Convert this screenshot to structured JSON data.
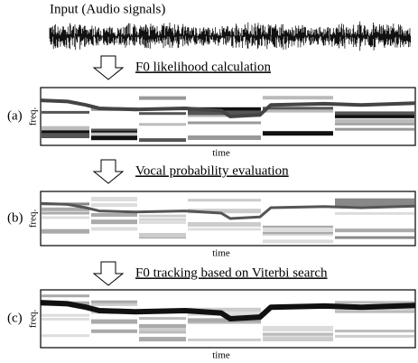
{
  "input": {
    "label": "Input (Audio signals)"
  },
  "steps": [
    {
      "title": "F0 likelihood calculation",
      "panel_label": "(a)",
      "y_label": "freq.",
      "x_label": "time"
    },
    {
      "title": "Vocal probability evaluation",
      "panel_label": "(b)",
      "y_label": "freq.",
      "x_label": "time"
    },
    {
      "title": "F0 tracking based on Viterbi search",
      "panel_label": "(c)",
      "y_label": "freq.",
      "x_label": "time"
    }
  ]
}
